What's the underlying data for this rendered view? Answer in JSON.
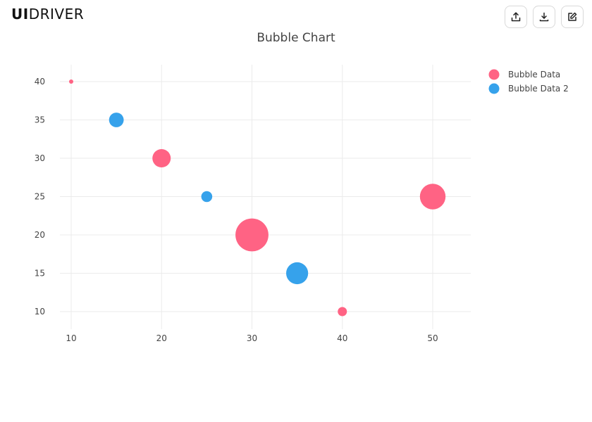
{
  "brand": {
    "logo_bold": "UI",
    "logo_rest": "DRIVER"
  },
  "toolbar": {
    "buttons": [
      {
        "name": "share-button",
        "icon": "share-icon"
      },
      {
        "name": "download-button",
        "icon": "download-icon"
      },
      {
        "name": "edit-button",
        "icon": "edit-icon"
      }
    ]
  },
  "chart_data": {
    "type": "scatter",
    "title": "Bubble Chart",
    "xlabel": "",
    "ylabel": "",
    "xlim": [
      7.5,
      54
    ],
    "ylim": [
      8,
      42
    ],
    "xticks": [
      10,
      20,
      30,
      40,
      50
    ],
    "yticks": [
      10,
      15,
      20,
      25,
      30,
      35,
      40
    ],
    "grid": true,
    "legend_position": "top-right",
    "series": [
      {
        "name": "Bubble Data",
        "color": "#ff6384",
        "points": [
          {
            "x": 10,
            "y": 40,
            "r": 2
          },
          {
            "x": 20,
            "y": 30,
            "r": 10
          },
          {
            "x": 30,
            "y": 20,
            "r": 18
          },
          {
            "x": 40,
            "y": 10,
            "r": 5
          },
          {
            "x": 50,
            "y": 25,
            "r": 14
          }
        ]
      },
      {
        "name": "Bubble Data 2",
        "color": "#36a2eb",
        "points": [
          {
            "x": 15,
            "y": 35,
            "r": 8
          },
          {
            "x": 25,
            "y": 25,
            "r": 6
          },
          {
            "x": 35,
            "y": 15,
            "r": 12
          }
        ]
      }
    ]
  }
}
